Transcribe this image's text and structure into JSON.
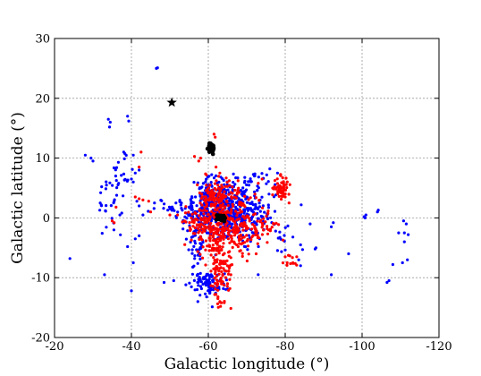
{
  "chart_data": {
    "type": "scatter",
    "title": "",
    "xlabel": "Galactic longitude (°)",
    "ylabel": "Galactic latitude (°)",
    "xlim": [
      -20,
      -120
    ],
    "ylim": [
      -20,
      30
    ],
    "xticks": [
      -20,
      -40,
      -60,
      -80,
      -100,
      -120
    ],
    "yticks": [
      -20,
      -10,
      0,
      10,
      20,
      30
    ],
    "xtick_labels": [
      "-20",
      "-40",
      "-60",
      "-80",
      "-100",
      "-120"
    ],
    "ytick_labels": [
      "-20",
      "-10",
      "0",
      "10",
      "20",
      "30"
    ],
    "grid": true,
    "colors": {
      "blue": "#0000ff",
      "red": "#ff0000",
      "black": "#000000"
    },
    "series": [
      {
        "color": "blue",
        "marker": "dot",
        "clusters": [
          {
            "cx": -66,
            "cy": 1,
            "sx": 4.5,
            "sy": 2.5,
            "n": 450
          },
          {
            "cx": -60,
            "cy": 3,
            "sx": 2.2,
            "sy": 2.0,
            "n": 90
          },
          {
            "cx": -57,
            "cy": 0.5,
            "sx": 1.8,
            "sy": 1.5,
            "n": 60
          },
          {
            "cx": -60,
            "cy": -11,
            "sx": 2.0,
            "sy": 1.0,
            "n": 90
          },
          {
            "cx": -57,
            "cy": -5,
            "sx": 1.5,
            "sy": 2.0,
            "n": 35
          },
          {
            "cx": -37,
            "cy": 7,
            "sx": 2.5,
            "sy": 2.0,
            "n": 25
          },
          {
            "cx": -34,
            "cy": 2,
            "sx": 1.5,
            "sy": 2.5,
            "n": 20
          },
          {
            "cx": -50,
            "cy": 1.5,
            "sx": 2.5,
            "sy": 0.6,
            "n": 20
          },
          {
            "cx": -72,
            "cy": 6,
            "sx": 2.5,
            "sy": 1.0,
            "n": 25
          },
          {
            "cx": -79,
            "cy": -4,
            "sx": 1.5,
            "sy": 1.5,
            "n": 12
          }
        ],
        "points": [
          [
            -46.5,
            25
          ],
          [
            -46.8,
            25.1
          ],
          [
            -34,
            16.5
          ],
          [
            -34.5,
            16
          ],
          [
            -34.3,
            15.2
          ],
          [
            -39,
            17
          ],
          [
            -39.3,
            16.2
          ],
          [
            -28,
            10.5
          ],
          [
            -29.5,
            10
          ],
          [
            -30,
            9.5
          ],
          [
            -38,
            11
          ],
          [
            -40.5,
            10.5
          ],
          [
            -42,
            8
          ],
          [
            -41,
            7.5
          ],
          [
            -40,
            6.5
          ],
          [
            -40.5,
            6
          ],
          [
            -33.5,
            5.5
          ],
          [
            -32,
            4.2
          ],
          [
            -42,
            2
          ],
          [
            -43,
            0.5
          ],
          [
            -46,
            2.5
          ],
          [
            -37,
            0.5
          ],
          [
            -41,
            -3.5
          ],
          [
            -42,
            -3
          ],
          [
            -39,
            -4.8
          ],
          [
            -40.5,
            -7.5
          ],
          [
            -33,
            -9.5
          ],
          [
            -40,
            -12.2
          ],
          [
            -24,
            -6.8
          ],
          [
            -51,
            -10.5
          ],
          [
            -48.5,
            -10.8
          ],
          [
            -92,
            -1.5
          ],
          [
            -92.5,
            -0.8
          ],
          [
            -100.5,
            0.2
          ],
          [
            -100.8,
            0
          ],
          [
            -101,
            0.5
          ],
          [
            -104,
            1
          ],
          [
            -104.2,
            1.3
          ],
          [
            -110.8,
            -0.5
          ],
          [
            -111.5,
            -1
          ],
          [
            -111,
            -2.5
          ],
          [
            -112,
            -2.8
          ],
          [
            -109.5,
            -2.5
          ],
          [
            -111,
            -4
          ],
          [
            -111.8,
            -7
          ],
          [
            -110.5,
            -7.5
          ],
          [
            -108,
            -7.8
          ],
          [
            -106.5,
            -10.8
          ],
          [
            -107,
            -10.5
          ],
          [
            -96.5,
            -6
          ],
          [
            -92,
            -9.5
          ],
          [
            -88,
            -5
          ],
          [
            -87.8,
            -5.2
          ],
          [
            -84,
            -4.5
          ],
          [
            -84.5,
            -5.3
          ],
          [
            -83.5,
            -7
          ],
          [
            -84,
            -8
          ],
          [
            -82,
            -3.2
          ],
          [
            -78,
            7.5
          ],
          [
            -76,
            8.2
          ],
          [
            -72,
            7
          ],
          [
            -55.5,
            2
          ],
          [
            -53,
            2.5
          ],
          [
            -57,
            -2
          ],
          [
            -86.5,
            -1
          ]
        ]
      },
      {
        "color": "red",
        "marker": "dot",
        "clusters": [
          {
            "cx": -63,
            "cy": 0,
            "sx": 4.0,
            "sy": 3.0,
            "n": 320
          },
          {
            "cx": -63,
            "cy": -8,
            "sx": 1.4,
            "sy": 3.0,
            "n": 110
          },
          {
            "cx": -62,
            "cy": 3.5,
            "sx": 2.5,
            "sy": 1.5,
            "n": 70
          },
          {
            "cx": -79,
            "cy": 5,
            "sx": 1.0,
            "sy": 0.9,
            "n": 60
          },
          {
            "cx": -69,
            "cy": -2.5,
            "sx": 2.5,
            "sy": 2.0,
            "n": 70
          },
          {
            "cx": -57,
            "cy": -1,
            "sx": 1.5,
            "sy": 1.2,
            "n": 30
          },
          {
            "cx": -75,
            "cy": -1.5,
            "sx": 1.5,
            "sy": 1.2,
            "n": 25
          },
          {
            "cx": -81,
            "cy": -7,
            "sx": 1.0,
            "sy": 0.6,
            "n": 10
          }
        ],
        "points": [
          [
            -42.5,
            11
          ],
          [
            -42,
            8.5
          ],
          [
            -61.5,
            14
          ],
          [
            -61.8,
            13.5
          ],
          [
            -58,
            10
          ],
          [
            -57.5,
            9.5
          ],
          [
            -62,
            8.5
          ],
          [
            -63,
            7.5
          ],
          [
            -59.5,
            7.2
          ],
          [
            -42,
            3.2
          ],
          [
            -43,
            3
          ],
          [
            -44.5,
            2.8
          ],
          [
            -41,
            3.5
          ],
          [
            -36,
            1.8
          ],
          [
            -45,
            1
          ],
          [
            -35,
            -0.5
          ],
          [
            -35.5,
            -0.8
          ],
          [
            -50,
            0.5
          ],
          [
            -52,
            0.5
          ],
          [
            -74,
            6.5
          ],
          [
            -73,
            5.8
          ],
          [
            -80,
            3.5
          ],
          [
            -81,
            2.5
          ],
          [
            -80,
            -6.5
          ],
          [
            -82,
            -7.5
          ],
          [
            -83,
            -6.5
          ],
          [
            -63,
            -14
          ],
          [
            -62.5,
            -13.2
          ],
          [
            -62,
            -12.8
          ],
          [
            -65,
            -11
          ]
        ]
      },
      {
        "color": "black",
        "marker": "dot",
        "clusters": [
          {
            "cx": -60.8,
            "cy": 11.6,
            "sx": 0.35,
            "sy": 0.35,
            "n": 70
          },
          {
            "cx": -63.2,
            "cy": 0,
            "sx": 0.6,
            "sy": 0.25,
            "n": 40
          }
        ],
        "points": []
      }
    ],
    "annotations": [
      {
        "marker": "star",
        "color": "black",
        "x": -50.5,
        "y": 19.3
      }
    ]
  }
}
